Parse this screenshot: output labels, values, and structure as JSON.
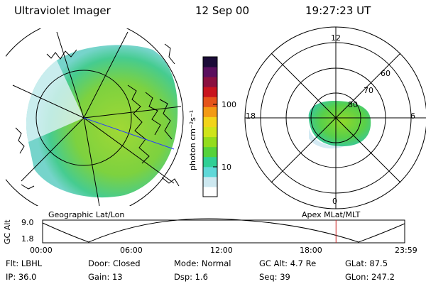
{
  "header": {
    "title": "Ultraviolet Imager",
    "date": "12 Sep 00",
    "time": "19:27:23 UT"
  },
  "colors": {
    "aurora_high": "#7ccf1e",
    "aurora_mid": "#22c98c",
    "aurora_low": "#8fd8e6",
    "marker": "#cc2222"
  },
  "geo_panel": {
    "label": "Geographic Lat/Lon"
  },
  "colorbar": {
    "unit_label": "photon cm⁻²s⁻¹",
    "ticks": [
      "100",
      "10"
    ],
    "palette": [
      "#ffffff",
      "#cde8f0",
      "#5fd8d8",
      "#2fcf95",
      "#55d23a",
      "#93dc1d",
      "#cfe41a",
      "#f2d41a",
      "#f39a14",
      "#e5541a",
      "#c8141e",
      "#8a1040",
      "#5a0f5e",
      "#1b0b38"
    ]
  },
  "polar_panel": {
    "label": "Apex  MLat/MLT",
    "mlt_labels": {
      "top": "12",
      "left": "18",
      "right": "6",
      "bottom": "0"
    },
    "lat_labels": [
      "60",
      "70",
      "80"
    ]
  },
  "altitude": {
    "axis_label": "GC Alt",
    "y_ticks": [
      "9.0",
      "1.8"
    ],
    "x_ticks": [
      "00:00",
      "06:00",
      "12:00",
      "18:00",
      "23:59"
    ],
    "current_time_fraction": 0.8103
  },
  "info": {
    "filter": "Flt: LBHL",
    "ip": "IP: 36.0",
    "door": "Door: Closed",
    "gain": "Gain: 13",
    "mode": "Mode: Normal",
    "dsp": "Dsp:    1.6",
    "gc_alt": "GC Alt: 4.7 Re",
    "seq": "Seq: 39",
    "glat": "GLat:  87.5",
    "glon": "GLon: 247.2"
  }
}
